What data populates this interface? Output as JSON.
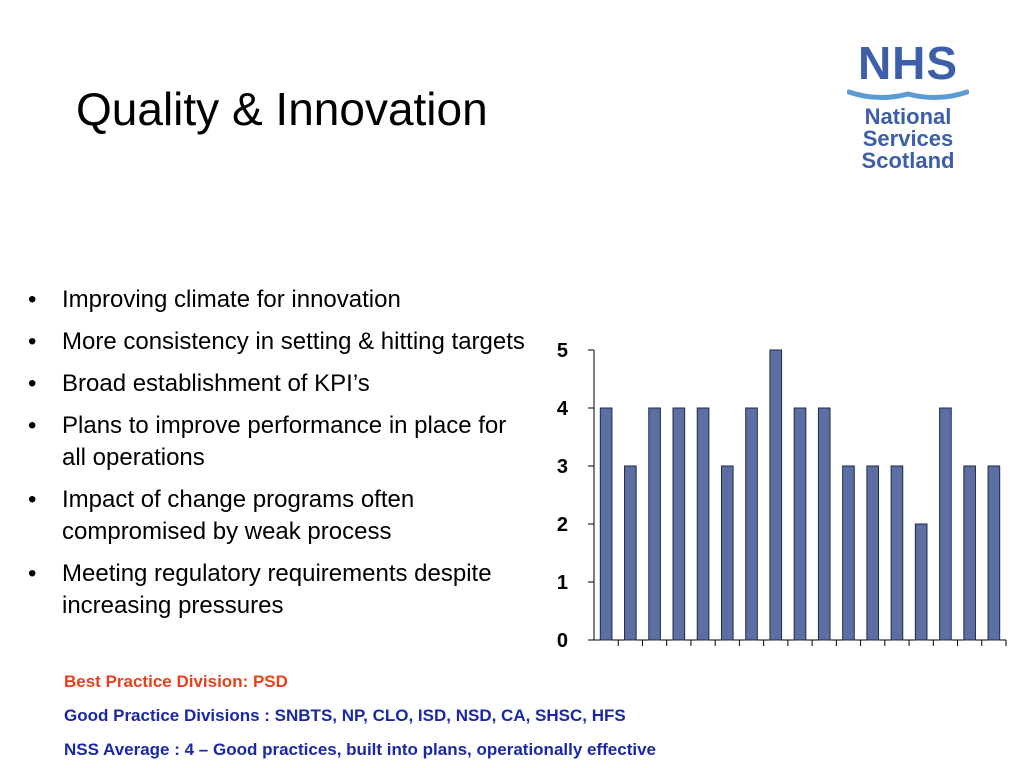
{
  "slide": {
    "title": "Quality & Innovation",
    "bullet_char": "•",
    "bullets": [
      "Improving climate for innovation",
      "More consistency in setting & hitting targets",
      "Broad establishment of KPI’s",
      "Plans to improve performance in place for all operations",
      "Impact of change programs often compromised by weak process",
      "Meeting regulatory requirements despite increasing pressures"
    ],
    "footer": {
      "best_practice": "Best Practice Division: PSD",
      "good_practice": "Good Practice Divisions : SNBTS, NP, CLO, ISD, NSD, CA, SHSC, HFS",
      "average": "NSS Average : 4 – Good practices, built into plans, operationally effective"
    }
  },
  "logo": {
    "mark": "NHS",
    "org_lines": [
      "National",
      "Services",
      "Scotland"
    ],
    "color": "#3d5ea8",
    "wave_color": "#5b9bd5"
  },
  "colors": {
    "bar_fill": "#5b6fa3",
    "bar_stroke": "#1f2a4a",
    "best_text": "#e8401c",
    "good_text": "#1a28a8"
  },
  "chart_data": {
    "type": "bar",
    "categories": [
      "",
      "",
      "",
      "",
      "",
      "",
      "",
      "",
      "",
      "",
      "",
      "",
      "",
      "",
      "",
      "",
      ""
    ],
    "values": [
      4,
      3,
      4,
      4,
      4,
      3,
      4,
      5,
      4,
      4,
      3,
      3,
      3,
      2,
      4,
      3,
      3
    ],
    "yticks": [
      "0",
      "1",
      "2",
      "3",
      "4",
      "5"
    ],
    "ylim": [
      0,
      5
    ],
    "title": "",
    "xlabel": "",
    "ylabel": "",
    "grid": false,
    "legend": "none"
  }
}
